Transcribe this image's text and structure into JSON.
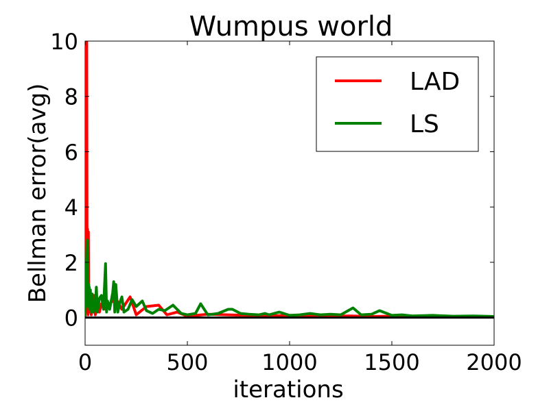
{
  "chart_data": {
    "type": "line",
    "title": "Wumpus world",
    "xlabel": "iterations",
    "ylabel": "Bellman error(avg)",
    "xlim": [
      0,
      2000
    ],
    "ylim": [
      -1,
      10
    ],
    "xticks": [
      0,
      500,
      1000,
      1500,
      2000
    ],
    "yticks": [
      0,
      2,
      4,
      6,
      8,
      10
    ],
    "grid": false,
    "legend_position": "top-right",
    "series": [
      {
        "name": "LAD",
        "color": "#ff0000",
        "points": [
          [
            0,
            0
          ],
          [
            2,
            10
          ],
          [
            4,
            10
          ],
          [
            6,
            10
          ],
          [
            8,
            10
          ],
          [
            10,
            0.2
          ],
          [
            12,
            3.2
          ],
          [
            14,
            0.1
          ],
          [
            16,
            3.1
          ],
          [
            18,
            0.3
          ],
          [
            20,
            1.1
          ],
          [
            22,
            0.2
          ],
          [
            26,
            0.9
          ],
          [
            30,
            0.1
          ],
          [
            35,
            0.6
          ],
          [
            40,
            0.2
          ],
          [
            45,
            0.8
          ],
          [
            50,
            0.1
          ],
          [
            60,
            0.6
          ],
          [
            70,
            0.2
          ],
          [
            80,
            0.5
          ],
          [
            100,
            0.3
          ],
          [
            120,
            0.5
          ],
          [
            150,
            0.7
          ],
          [
            180,
            0.3
          ],
          [
            220,
            0.75
          ],
          [
            250,
            0.1
          ],
          [
            300,
            0.4
          ],
          [
            360,
            0.45
          ],
          [
            400,
            0.1
          ],
          [
            450,
            0.2
          ],
          [
            500,
            0.05
          ],
          [
            600,
            0.12
          ],
          [
            700,
            0.1
          ],
          [
            800,
            0.08
          ],
          [
            900,
            0.06
          ],
          [
            1000,
            0.08
          ],
          [
            1100,
            0.06
          ],
          [
            1200,
            0.05
          ],
          [
            1300,
            0.06
          ],
          [
            1400,
            0.04
          ],
          [
            1500,
            0.05
          ],
          [
            1600,
            0.04
          ],
          [
            1700,
            0.05
          ],
          [
            1800,
            0.04
          ],
          [
            1900,
            0.03
          ],
          [
            2000,
            0.03
          ]
        ]
      },
      {
        "name": "LS",
        "color": "#008000",
        "points": [
          [
            0,
            0
          ],
          [
            5,
            1.5
          ],
          [
            10,
            2.8
          ],
          [
            14,
            0.4
          ],
          [
            18,
            1.2
          ],
          [
            22,
            0.3
          ],
          [
            26,
            1.0
          ],
          [
            30,
            0.2
          ],
          [
            35,
            0.85
          ],
          [
            40,
            0.2
          ],
          [
            50,
            0.3
          ],
          [
            55,
            1.1
          ],
          [
            60,
            0.2
          ],
          [
            70,
            0.7
          ],
          [
            80,
            0.8
          ],
          [
            90,
            0.3
          ],
          [
            100,
            1.95
          ],
          [
            105,
            0.2
          ],
          [
            110,
            0.6
          ],
          [
            120,
            0.3
          ],
          [
            135,
            0.9
          ],
          [
            140,
            1.3
          ],
          [
            145,
            0.2
          ],
          [
            150,
            1.2
          ],
          [
            160,
            0.2
          ],
          [
            170,
            0.55
          ],
          [
            180,
            0.75
          ],
          [
            190,
            0.2
          ],
          [
            210,
            0.3
          ],
          [
            230,
            0.65
          ],
          [
            250,
            0.4
          ],
          [
            280,
            0.6
          ],
          [
            300,
            0.25
          ],
          [
            330,
            0.15
          ],
          [
            360,
            0.3
          ],
          [
            390,
            0.25
          ],
          [
            430,
            0.45
          ],
          [
            470,
            0.15
          ],
          [
            500,
            0.1
          ],
          [
            540,
            0.15
          ],
          [
            565,
            0.5
          ],
          [
            600,
            0.1
          ],
          [
            650,
            0.15
          ],
          [
            700,
            0.3
          ],
          [
            720,
            0.3
          ],
          [
            760,
            0.15
          ],
          [
            800,
            0.12
          ],
          [
            850,
            0.1
          ],
          [
            880,
            0.15
          ],
          [
            900,
            0.1
          ],
          [
            950,
            0.2
          ],
          [
            1000,
            0.08
          ],
          [
            1050,
            0.1
          ],
          [
            1100,
            0.15
          ],
          [
            1150,
            0.1
          ],
          [
            1200,
            0.12
          ],
          [
            1250,
            0.1
          ],
          [
            1310,
            0.35
          ],
          [
            1350,
            0.1
          ],
          [
            1400,
            0.12
          ],
          [
            1440,
            0.25
          ],
          [
            1500,
            0.08
          ],
          [
            1550,
            0.1
          ],
          [
            1600,
            0.06
          ],
          [
            1700,
            0.08
          ],
          [
            1800,
            0.05
          ],
          [
            1900,
            0.06
          ],
          [
            2000,
            0.04
          ]
        ]
      }
    ]
  }
}
